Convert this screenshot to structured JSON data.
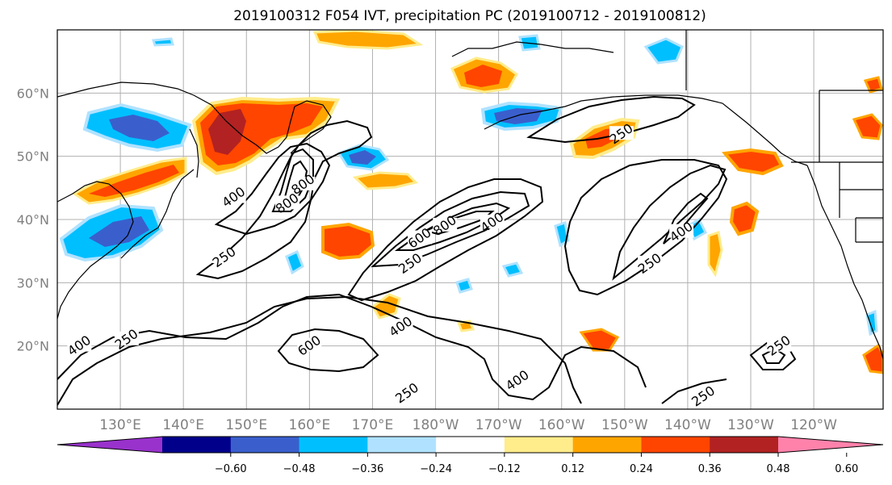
{
  "title": "2019100312 F054 IVT, precipitation PC (2019100712 - 2019100812)",
  "map": {
    "lon_range": [
      120,
      251
    ],
    "lat_range": [
      10,
      70
    ],
    "lon_ticks": [
      {
        "lon": 130,
        "label": "130°E"
      },
      {
        "lon": 140,
        "label": "140°E"
      },
      {
        "lon": 150,
        "label": "150°E"
      },
      {
        "lon": 160,
        "label": "160°E"
      },
      {
        "lon": 170,
        "label": "170°E"
      },
      {
        "lon": 180,
        "label": "180°W"
      },
      {
        "lon": 190,
        "label": "170°W"
      },
      {
        "lon": 200,
        "label": "160°W"
      },
      {
        "lon": 210,
        "label": "150°W"
      },
      {
        "lon": 220,
        "label": "140°W"
      },
      {
        "lon": 230,
        "label": "130°W"
      },
      {
        "lon": 240,
        "label": "120°W"
      }
    ],
    "lat_ticks": [
      {
        "lat": 20,
        "label": "20°N"
      },
      {
        "lat": 30,
        "label": "30°N"
      },
      {
        "lat": 40,
        "label": "40°N"
      },
      {
        "lat": 50,
        "label": "50°N"
      },
      {
        "lat": 60,
        "label": "60°N"
      }
    ],
    "contour_labels": [
      {
        "text": "400",
        "lon": 148,
        "lat": 43.5
      },
      {
        "text": "250",
        "lon": 146.5,
        "lat": 34
      },
      {
        "text": "800",
        "lon": 156.5,
        "lat": 42.5
      },
      {
        "text": "800",
        "lon": 159,
        "lat": 45.5
      },
      {
        "text": "600",
        "lon": 177.5,
        "lat": 37
      },
      {
        "text": "800",
        "lon": 181.5,
        "lat": 39
      },
      {
        "text": "400",
        "lon": 189,
        "lat": 39.5
      },
      {
        "text": "250",
        "lon": 176,
        "lat": 33
      },
      {
        "text": "400",
        "lon": 174.5,
        "lat": 23
      },
      {
        "text": "600",
        "lon": 160,
        "lat": 20
      },
      {
        "text": "250",
        "lon": 131,
        "lat": 21
      },
      {
        "text": "400",
        "lon": 123.5,
        "lat": 20
      },
      {
        "text": "250",
        "lon": 175.5,
        "lat": 12.5
      },
      {
        "text": "400",
        "lon": 193,
        "lat": 14.5
      },
      {
        "text": "250",
        "lon": 214,
        "lat": 33
      },
      {
        "text": "400",
        "lon": 219,
        "lat": 38
      },
      {
        "text": "250",
        "lon": 209.5,
        "lat": 53.5
      },
      {
        "text": "250",
        "lon": 234.5,
        "lat": 20
      },
      {
        "text": "250",
        "lon": 222.5,
        "lat": 12
      }
    ]
  },
  "colorbar": {
    "colors": [
      "#9932cc",
      "#00008b",
      "#3a5fcd",
      "#00bfff",
      "#b0e2ff",
      "#ffffff",
      "#ffec8b",
      "#ffa500",
      "#ff4500",
      "#b22222",
      "#ff82ab"
    ],
    "ticks": [
      "−0.60",
      "−0.48",
      "−0.36",
      "−0.24",
      "−0.12",
      "0.12",
      "0.24",
      "0.36",
      "0.48",
      "0.60"
    ]
  }
}
